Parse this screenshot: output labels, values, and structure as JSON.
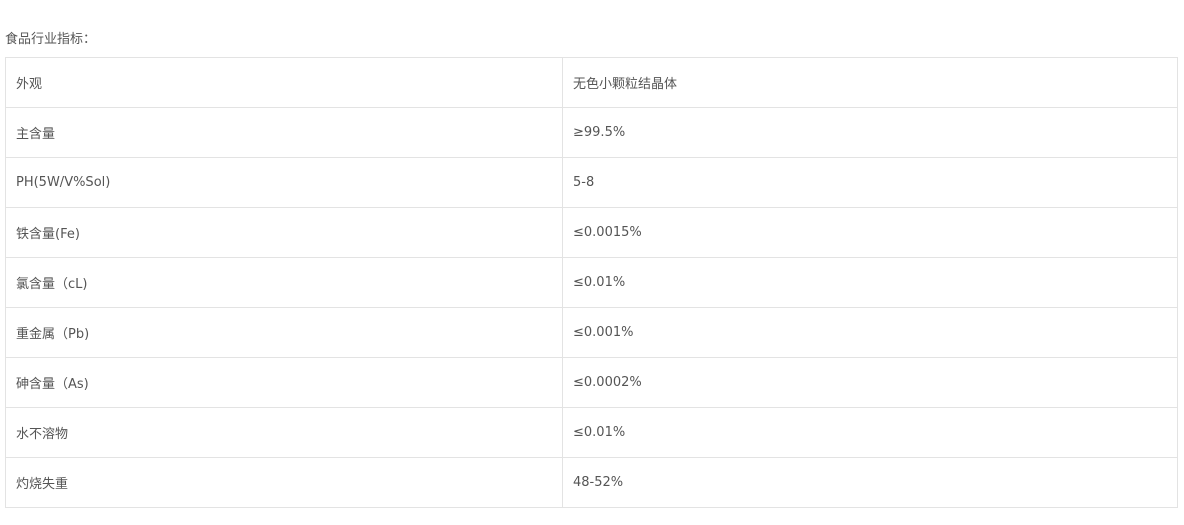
{
  "heading": "食品行业指标：",
  "rows": [
    {
      "name": "外观",
      "value": "无色小颗粒结晶体"
    },
    {
      "name": "主含量",
      "value": "≥99.5%"
    },
    {
      "name": "PH(5W/V%Sol)",
      "value": "5-8"
    },
    {
      "name": "铁含量(Fe)",
      "value": "≤0.0015%"
    },
    {
      "name": "氯含量（cL)",
      "value": "≤0.01%"
    },
    {
      "name": "重金属（Pb)",
      "value": "≤0.001%"
    },
    {
      "name": "砷含量（As)",
      "value": "≤0.0002%"
    },
    {
      "name": "水不溶物",
      "value": "≤0.01%"
    },
    {
      "name": "灼烧失重",
      "value": "48-52%"
    }
  ]
}
